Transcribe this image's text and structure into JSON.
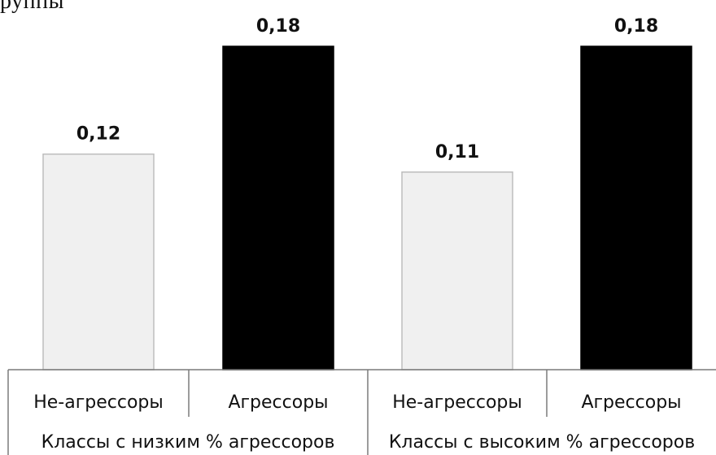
{
  "top_text": "руппы",
  "colors": {
    "non_aggressor": "#f0f0f0",
    "aggressor": "#000000",
    "bar_edge": "#bdbdbd",
    "axis": "#7a7a7a"
  },
  "chart_data": {
    "type": "bar",
    "groups": [
      {
        "label": "Классы с низким % агрессоров",
        "bars": [
          {
            "category": "Не-агрессоры",
            "value": 0.12,
            "label": "0,12"
          },
          {
            "category": "Агрессоры",
            "value": 0.18,
            "label": "0,18"
          }
        ]
      },
      {
        "label": "Классы с высоким % агрессоров",
        "bars": [
          {
            "category": "Не-агрессоры",
            "value": 0.11,
            "label": "0,11"
          },
          {
            "category": "Агрессоры",
            "value": 0.18,
            "label": "0,18"
          }
        ]
      }
    ],
    "ylim": [
      0,
      0.18
    ],
    "grid": false
  }
}
